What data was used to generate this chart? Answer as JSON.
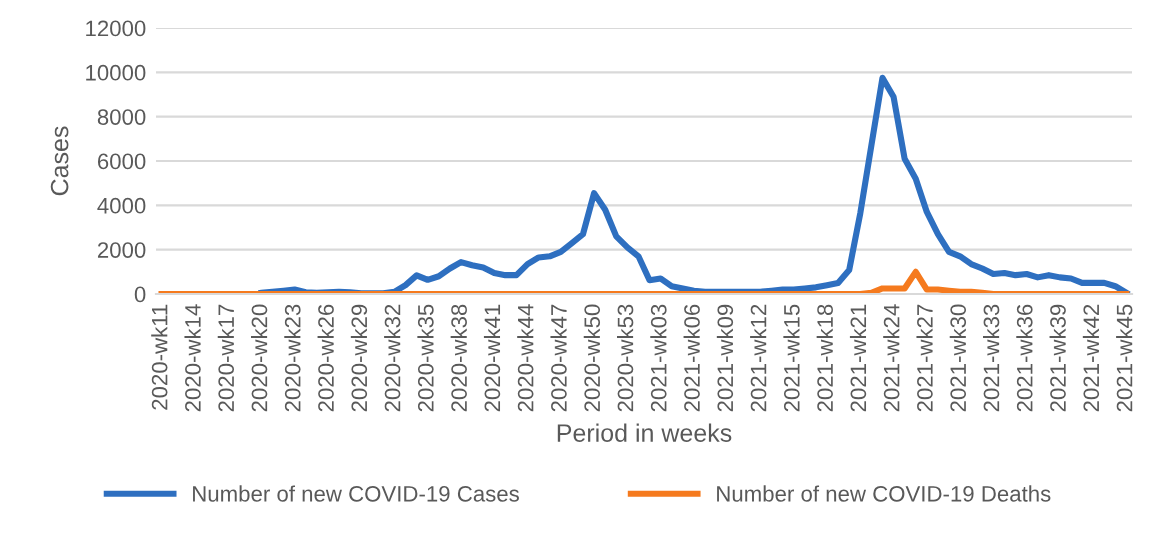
{
  "chart_data": {
    "type": "line",
    "xlabel": "Period in weeks",
    "ylabel": "Cases",
    "categories": [
      "2020-wk11",
      null,
      null,
      "2020-wk14",
      null,
      null,
      "2020-wk17",
      null,
      null,
      "2020-wk20",
      null,
      null,
      "2020-wk23",
      null,
      null,
      "2020-wk26",
      null,
      null,
      "2020-wk29",
      null,
      null,
      "2020-wk32",
      null,
      null,
      "2020-wk35",
      null,
      null,
      "2020-wk38",
      null,
      null,
      "2020-wk41",
      null,
      null,
      "2020-wk44",
      null,
      null,
      "2020-wk47",
      null,
      null,
      "2020-wk50",
      null,
      null,
      "2020-wk53",
      null,
      null,
      "2021-wk03",
      null,
      null,
      "2021-wk06",
      null,
      null,
      "2021-wk09",
      null,
      null,
      "2021-wk12",
      null,
      null,
      "2021-wk15",
      null,
      null,
      "2021-wk18",
      null,
      null,
      "2021-wk21",
      null,
      null,
      "2021-wk24",
      null,
      null,
      "2021-wk27",
      null,
      null,
      "2021-wk30",
      null,
      null,
      "2021-wk33",
      null,
      null,
      "2021-wk36",
      null,
      null,
      "2021-wk39",
      null,
      null,
      "2021-wk42",
      null,
      null,
      "2021-wk45"
    ],
    "series": [
      {
        "name": "Number of new COVID-19 Cases",
        "color": "#2e6fc0",
        "values": [
          null,
          null,
          null,
          null,
          null,
          null,
          null,
          null,
          null,
          50,
          100,
          150,
          200,
          80,
          50,
          80,
          100,
          80,
          30,
          30,
          30,
          100,
          400,
          840,
          640,
          800,
          1150,
          1440,
          1300,
          1200,
          950,
          850,
          850,
          1350,
          1650,
          1700,
          1900,
          2300,
          2700,
          4550,
          3800,
          2600,
          2100,
          1700,
          620,
          700,
          350,
          250,
          150,
          100,
          100,
          100,
          100,
          100,
          100,
          150,
          200,
          200,
          250,
          300,
          400,
          500,
          1080,
          3640,
          6700,
          9750,
          8900,
          6100,
          5200,
          3700,
          2700,
          1900,
          1700,
          1350,
          1150,
          900,
          950,
          850,
          900,
          750,
          850,
          750,
          700,
          500,
          500,
          500,
          350,
          50
        ]
      },
      {
        "name": "Number of new COVID-19 Deaths",
        "color": "#f57a1e",
        "values": [
          0,
          0,
          0,
          0,
          0,
          0,
          0,
          0,
          0,
          0,
          0,
          0,
          0,
          0,
          0,
          0,
          0,
          0,
          0,
          0,
          0,
          0,
          0,
          0,
          0,
          0,
          0,
          0,
          0,
          0,
          0,
          0,
          0,
          0,
          0,
          0,
          0,
          0,
          0,
          0,
          0,
          0,
          0,
          0,
          0,
          0,
          0,
          0,
          0,
          0,
          0,
          0,
          0,
          0,
          0,
          0,
          0,
          0,
          0,
          0,
          0,
          0,
          0,
          0,
          50,
          250,
          250,
          250,
          1000,
          200,
          200,
          150,
          100,
          100,
          50,
          0,
          0,
          0,
          0,
          0,
          0,
          0,
          0,
          0,
          0,
          0,
          0,
          0
        ]
      }
    ],
    "ylim": [
      0,
      12000
    ],
    "yticks": [
      0,
      2000,
      4000,
      6000,
      8000,
      10000,
      12000
    ],
    "grid": "y",
    "legend": "bottom",
    "marker": "none",
    "line_style": "solid"
  }
}
